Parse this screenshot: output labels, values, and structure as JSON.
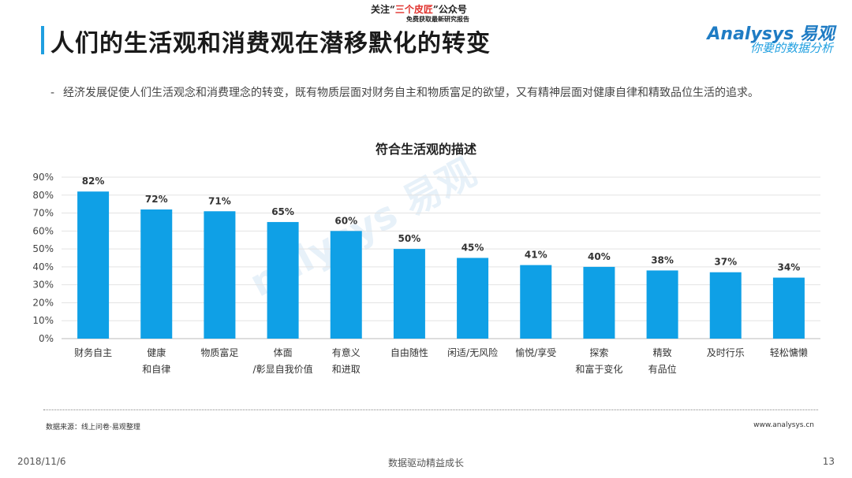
{
  "watermark": {
    "line1_prefix": "关注“",
    "line1_highlight": "三个皮匠",
    "line1_suffix": "”公众号",
    "line2": "免费获取最新研究报告",
    "center": "nalysys 易观"
  },
  "logo": {
    "brand": "Analysys 易观",
    "tagline": "你要的数据分析"
  },
  "title": "人们的生活观和消费观在潜移默化的转变",
  "bullet": "经济发展促使人们生活观念和消费理念的转变，既有物质层面对财务自主和物质富足的欲望，又有精神层面对健康自律和精致品位生活的追求。",
  "footer": {
    "source": "数据来源：线上问卷·易观整理",
    "site": "www.analysys.cn",
    "date": "2018/11/6",
    "center": "数据驱动精益成长",
    "page": "13"
  },
  "colors": {
    "bar": "#0fa0e6",
    "accent": "#1f9fe0"
  },
  "chart_data": {
    "type": "bar",
    "title": "符合生活观的描述",
    "categories": [
      [
        "财务自主"
      ],
      [
        "健康",
        "和自律"
      ],
      [
        "物质富足"
      ],
      [
        "体面",
        "/彰显自我价值"
      ],
      [
        "有意义",
        "和进取"
      ],
      [
        "自由随性"
      ],
      [
        "闲适/无风险"
      ],
      [
        "愉悦/享受"
      ],
      [
        "探索",
        "和富于变化"
      ],
      [
        "精致",
        "有品位"
      ],
      [
        "及时行乐"
      ],
      [
        "轻松慵懒"
      ]
    ],
    "values": [
      82,
      72,
      71,
      65,
      60,
      50,
      45,
      41,
      40,
      38,
      37,
      34
    ],
    "value_labels": [
      "82%",
      "72%",
      "71%",
      "65%",
      "60%",
      "50%",
      "45%",
      "41%",
      "40%",
      "38%",
      "37%",
      "34%"
    ],
    "y_ticks": [
      "0%",
      "10%",
      "20%",
      "30%",
      "40%",
      "50%",
      "60%",
      "70%",
      "80%",
      "90%"
    ],
    "ylim": [
      0,
      90
    ],
    "grid": true,
    "xlabel": "",
    "ylabel": ""
  }
}
